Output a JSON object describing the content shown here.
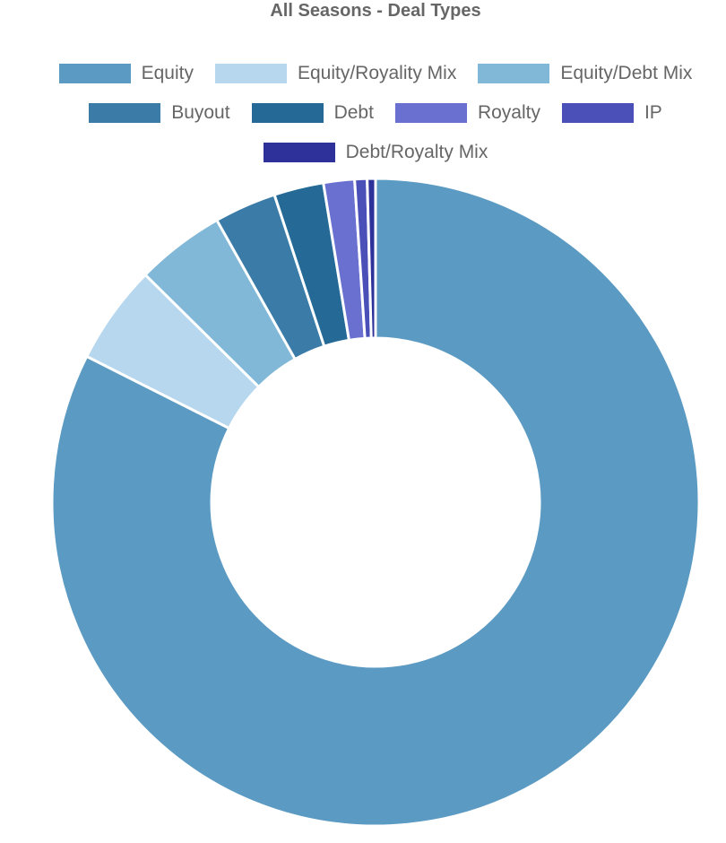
{
  "chart_data": {
    "type": "pie",
    "variant": "doughnut",
    "title": "All Seasons - Deal Types",
    "legend_position": "top",
    "categories": [
      "Equity",
      "Equity/Royality Mix",
      "Equity/Debt Mix",
      "Buyout",
      "Debt",
      "Royalty",
      "IP",
      "Debt/Royalty Mix"
    ],
    "values": [
      79.8,
      4.8,
      4.3,
      3.0,
      2.4,
      1.5,
      0.6,
      0.4
    ],
    "colors": [
      "#5b9ac2",
      "#b6d7ee",
      "#81b8d8",
      "#3a7ba7",
      "#256a96",
      "#6a70cf",
      "#4a50b8",
      "#2e3199"
    ]
  }
}
